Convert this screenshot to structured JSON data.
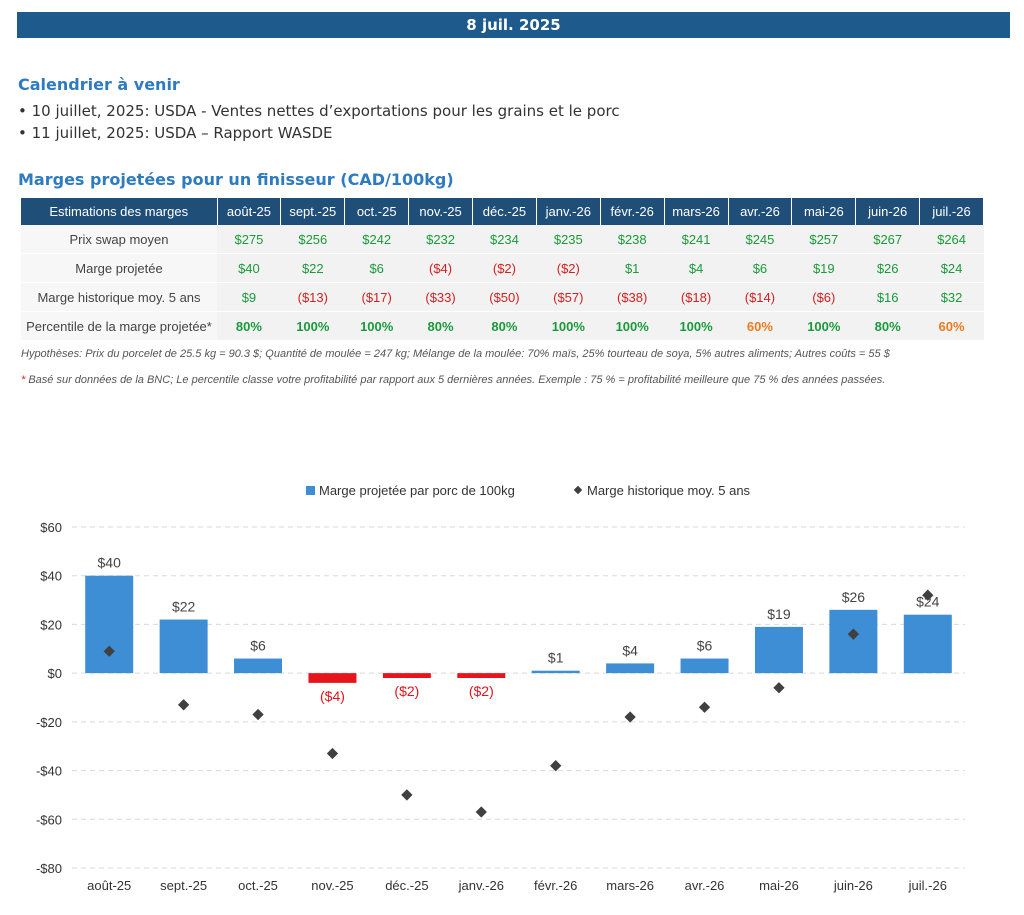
{
  "header": {
    "date": "8 juil. 2025"
  },
  "calendar": {
    "title": "Calendrier à venir",
    "items": [
      "• 10 juillet, 2025: USDA - Ventes nettes d’exportations pour les grains et le porc",
      "• 11 juillet, 2025: USDA – Rapport WASDE"
    ]
  },
  "margins_table": {
    "title": "Marges projetées pour un finisseur (CAD/100kg)",
    "header_label": "Estimations des marges",
    "months": [
      "août-25",
      "sept.-25",
      "oct.-25",
      "nov.-25",
      "déc.-25",
      "janv.-26",
      "févr.-26",
      "mars-26",
      "avr.-26",
      "mai-26",
      "juin-26",
      "juil.-26"
    ],
    "rows": [
      {
        "label": "Prix swap moyen",
        "values": [
          "$275",
          "$256",
          "$242",
          "$232",
          "$234",
          "$235",
          "$238",
          "$241",
          "$245",
          "$257",
          "$267",
          "$264"
        ]
      },
      {
        "label": "Marge projetée",
        "values": [
          "$40",
          "$22",
          "$6",
          "($4)",
          "($2)",
          "($2)",
          "$1",
          "$4",
          "$6",
          "$19",
          "$26",
          "$24"
        ]
      },
      {
        "label": "Marge historique moy. 5 ans",
        "values": [
          "$9",
          "($13)",
          "($17)",
          "($33)",
          "($50)",
          "($57)",
          "($38)",
          "($18)",
          "($14)",
          "($6)",
          "$16",
          "$32"
        ]
      },
      {
        "label": "Percentile de la marge projetée*",
        "values": [
          "80%",
          "100%",
          "100%",
          "80%",
          "80%",
          "100%",
          "100%",
          "100%",
          "60%",
          "100%",
          "80%",
          "60%"
        ]
      }
    ]
  },
  "notes": {
    "assumptions": "Hypothèses: Prix du porcelet de 25.5 kg = 90.3 $; Quantité de moulée = 247 kg; Mélange de la moulée: 70% maïs, 25% tourteau de soya, 5% autres aliments; Autres coûts = 55 $",
    "footnote_star": "*",
    "footnote": " Basé sur données de la BNC; Le percentile classe votre profitabilité par rapport aux 5 dernières années. Exemple : 75 % = profitabilité meilleure que 75 % des années passées."
  },
  "colors": {
    "positive_bar": "#3e8ed6",
    "negative_bar": "#e8141b",
    "marker": "#404040",
    "positive_text": "#1a9a3a",
    "negative_text": "#d42020",
    "warn_text": "#ee7a1e"
  },
  "chart_data": {
    "type": "bar",
    "categories": [
      "août-25",
      "sept.-25",
      "oct.-25",
      "nov.-25",
      "déc.-25",
      "janv.-26",
      "févr.-26",
      "mars-26",
      "avr.-26",
      "mai-26",
      "juin-26",
      "juil.-26"
    ],
    "series": [
      {
        "name": "Marge projetée par porc de 100kg",
        "type": "bar",
        "values": [
          40,
          22,
          6,
          -4,
          -2,
          -2,
          1,
          4,
          6,
          19,
          26,
          24
        ],
        "labels": [
          "$40",
          "$22",
          "$6",
          "($4)",
          "($2)",
          "($2)",
          "$1",
          "$4",
          "$6",
          "$19",
          "$26",
          "$24"
        ]
      },
      {
        "name": "Marge historique moy. 5 ans",
        "type": "scatter",
        "marker": "diamond",
        "values": [
          9,
          -13,
          -17,
          -33,
          -50,
          -57,
          -38,
          -18,
          -14,
          -6,
          16,
          32
        ]
      }
    ],
    "ylim": [
      -80,
      60
    ],
    "yticks": [
      60,
      40,
      20,
      0,
      -20,
      -40,
      -60,
      -80
    ],
    "ytick_labels": [
      "$60",
      "$40",
      "$20",
      "$0",
      "-$20",
      "-$40",
      "-$60",
      "-$80"
    ],
    "grid": true,
    "legend_position": "top-center"
  }
}
